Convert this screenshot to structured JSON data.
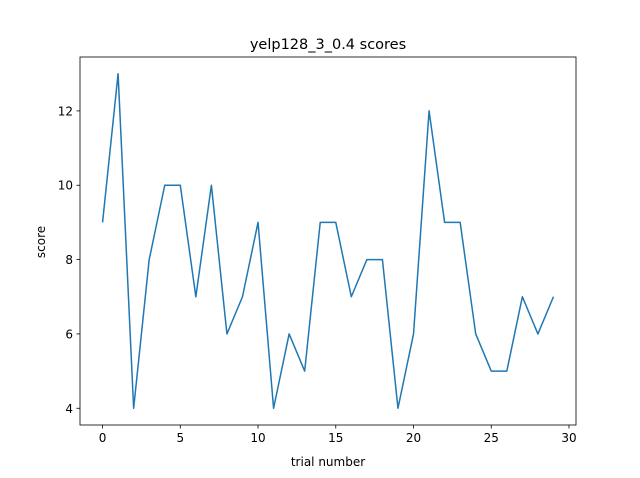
{
  "chart_data": {
    "type": "line",
    "title": "yelp128_3_0.4 scores",
    "xlabel": "trial number",
    "ylabel": "score",
    "xlim": [
      -1.45,
      30.45
    ],
    "ylim": [
      3.55,
      13.45
    ],
    "xticks": [
      0,
      5,
      10,
      15,
      20,
      25,
      30
    ],
    "yticks": [
      4,
      6,
      8,
      10,
      12
    ],
    "grid": false,
    "series": [
      {
        "color": "#1f77b4",
        "x": [
          0,
          1,
          2,
          3,
          4,
          5,
          6,
          7,
          8,
          9,
          10,
          11,
          12,
          13,
          14,
          15,
          16,
          17,
          18,
          19,
          20,
          21,
          22,
          23,
          24,
          25,
          26,
          27,
          28,
          29
        ],
        "values": [
          9,
          13,
          4,
          8,
          10,
          10,
          7,
          10,
          6,
          7,
          9,
          4,
          6,
          5,
          9,
          9,
          7,
          8,
          8,
          4,
          6,
          12,
          9,
          9,
          6,
          5,
          5,
          7,
          6,
          7
        ]
      }
    ]
  }
}
